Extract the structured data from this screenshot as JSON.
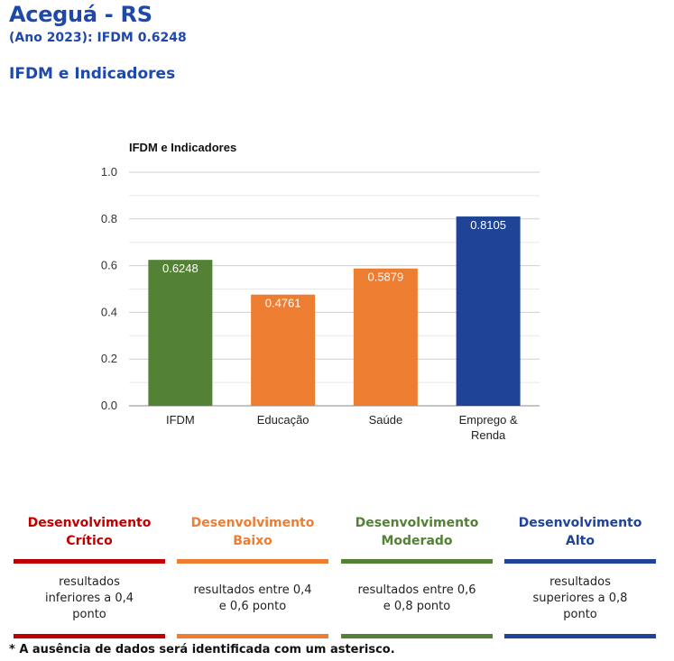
{
  "header": {
    "title": "Aceguá - RS",
    "subtitle": "(Ano 2023): IFDM 0.6248",
    "section": "IFDM e Indicadores"
  },
  "chart_data": {
    "type": "bar",
    "title": "IFDM e Indicadores",
    "categories": [
      "IFDM",
      "Educação",
      "Saúde",
      "Emprego & Renda"
    ],
    "category_lines": [
      [
        "IFDM"
      ],
      [
        "Educação"
      ],
      [
        "Saúde"
      ],
      [
        "Emprego &",
        "Renda"
      ]
    ],
    "values": [
      0.6248,
      0.4761,
      0.5879,
      0.8105
    ],
    "value_labels": [
      "0.6248",
      "0.4761",
      "0.5879",
      "0.8105"
    ],
    "bar_colors": [
      "#538135",
      "#ed7d31",
      "#ed7d31",
      "#1f4497"
    ],
    "ylim": [
      0,
      1
    ],
    "yticks": [
      "0.0",
      "0.2",
      "0.4",
      "0.6",
      "0.8",
      "1.0"
    ],
    "grid": true,
    "xlabel": "",
    "ylabel": ""
  },
  "legend": [
    {
      "title_line1": "Desenvolvimento",
      "title_line2": "Crítico",
      "color": "#c00000",
      "desc": "resultados inferiores a 0,4 ponto"
    },
    {
      "title_line1": "Desenvolvimento",
      "title_line2": "Baixo",
      "color": "#ed7d31",
      "desc": "resultados entre 0,4 e 0,6 ponto"
    },
    {
      "title_line1": "Desenvolvimento",
      "title_line2": "Moderado",
      "color": "#538135",
      "desc": "resultados entre 0,6 e 0,8 ponto"
    },
    {
      "title_line1": "Desenvolvimento",
      "title_line2": "Alto",
      "color": "#1f4497",
      "desc": "resultados superiores a 0,8 ponto"
    }
  ],
  "footnote": "* A ausência de dados será identificada com um asterisco."
}
